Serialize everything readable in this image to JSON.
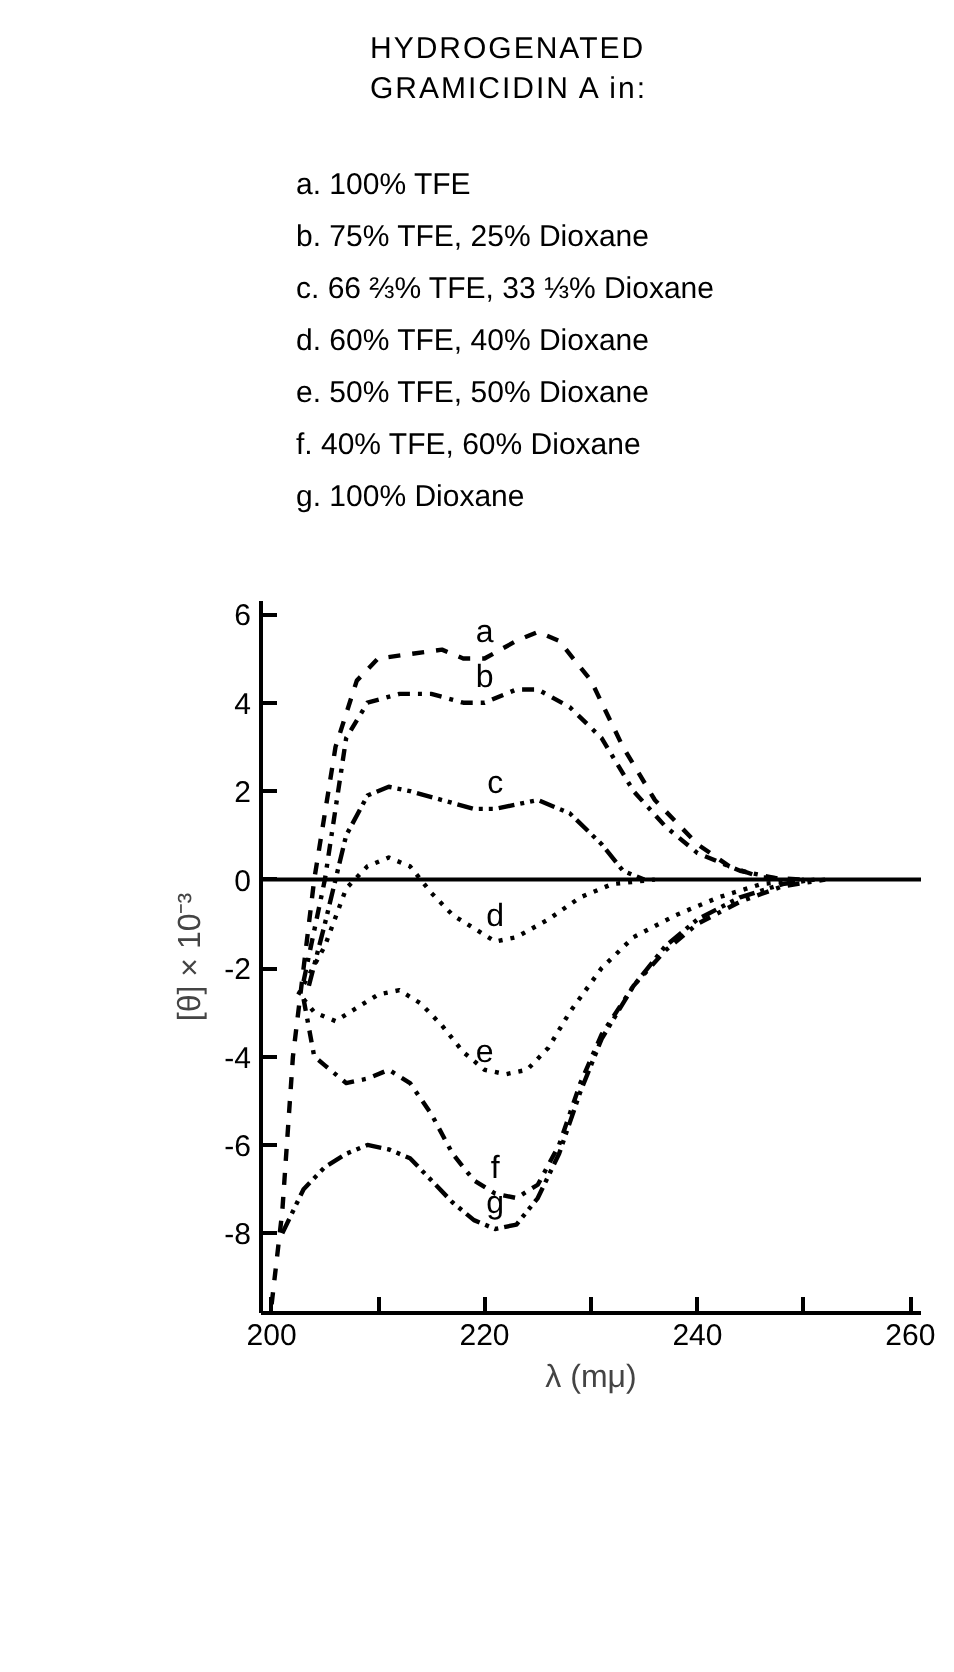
{
  "chart_data": {
    "type": "line",
    "title": "HYDROGENATED\nGRAMICIDIN A in:",
    "annotations": [
      "a. 100% TFE",
      "b. 75% TFE, 25% Dioxane",
      "c. 66 ⅔% TFE, 33 ⅓% Dioxane",
      "d. 60% TFE, 40% Dioxane",
      "e. 50% TFE, 50% Dioxane",
      "f. 40% TFE, 60% Dioxane",
      "g. 100% Dioxane"
    ],
    "ref_lines": [
      {
        "axis": "y",
        "value": 0,
        "color": "#000000",
        "line_style": "solid"
      }
    ],
    "xlabel": "λ (mμ)",
    "ylabel": "[θ] × 10⁻³",
    "xlim": [
      199,
      261
    ],
    "ylim": [
      -9.8,
      6.3
    ],
    "xticks": [
      200,
      {
        "value": 210,
        "label": null
      },
      220,
      {
        "value": 230,
        "label": null
      },
      240,
      {
        "value": 250,
        "label": null
      },
      260
    ],
    "yticks": [
      -8,
      -6,
      -4,
      -2,
      0,
      2,
      4,
      6
    ],
    "grid": false,
    "marker": "none",
    "series": [
      {
        "name": "a",
        "color": "#000000",
        "line_style": "dashed",
        "x": [
          200,
          201,
          202,
          204,
          206,
          208,
          210,
          213,
          216,
          218,
          220,
          223,
          225,
          227,
          230,
          233,
          236,
          240,
          243,
          246,
          250
        ],
        "values": [
          -9.6,
          -7.5,
          -4,
          0,
          3,
          4.5,
          5,
          5.1,
          5.2,
          5.0,
          5.0,
          5.4,
          5.6,
          5.4,
          4.5,
          3.0,
          1.8,
          0.8,
          0.3,
          0.05,
          0
        ]
      },
      {
        "name": "b",
        "color": "#000000",
        "line_style": "dashdot",
        "x": [
          203,
          205,
          207,
          209,
          212,
          215,
          218,
          220,
          223,
          225,
          228,
          231,
          234,
          237,
          240,
          244,
          248
        ],
        "values": [
          -2.3,
          0,
          3.2,
          4.0,
          4.2,
          4.2,
          4.0,
          4.0,
          4.3,
          4.3,
          3.9,
          3.2,
          2.0,
          1.2,
          0.6,
          0.2,
          0
        ]
      },
      {
        "name": "c",
        "color": "#000000",
        "line_style": "dashdotdot",
        "x": [
          203.5,
          205,
          207,
          209,
          211,
          213,
          216,
          219,
          221,
          223,
          225,
          228,
          231,
          233,
          235
        ],
        "values": [
          -2.4,
          -1,
          1.0,
          1.9,
          2.1,
          2.0,
          1.8,
          1.6,
          1.6,
          1.7,
          1.8,
          1.5,
          0.8,
          0.2,
          0
        ]
      },
      {
        "name": "d",
        "color": "#000000",
        "line_style": "dotted",
        "x": [
          202.5,
          205,
          207,
          209,
          211,
          213,
          215,
          217,
          219,
          221,
          223,
          226,
          229,
          232,
          236
        ],
        "values": [
          -2.6,
          -1.5,
          -0.2,
          0.3,
          0.5,
          0.3,
          -0.3,
          -0.8,
          -1.1,
          -1.4,
          -1.3,
          -0.9,
          -0.4,
          -0.1,
          0
        ]
      },
      {
        "name": "e",
        "color": "#000000",
        "line_style": "dotted",
        "x": [
          203,
          204,
          206,
          208,
          210,
          212,
          214,
          216,
          218,
          220,
          222,
          224,
          226,
          228,
          231,
          234,
          238,
          242,
          246,
          250
        ],
        "values": [
          -2.7,
          -3.0,
          -3.2,
          -2.9,
          -2.6,
          -2.5,
          -2.8,
          -3.3,
          -3.9,
          -4.3,
          -4.4,
          -4.3,
          -3.8,
          -3.0,
          -2.0,
          -1.3,
          -0.8,
          -0.4,
          -0.1,
          0
        ]
      },
      {
        "name": "f",
        "color": "#000000",
        "line_style": "dashdot",
        "x": [
          203,
          204,
          205,
          207,
          209,
          211,
          213,
          215,
          217,
          219,
          221,
          223,
          225,
          227,
          229,
          231,
          234,
          237,
          240,
          244,
          248,
          252
        ],
        "values": [
          -2.7,
          -4.0,
          -4.2,
          -4.6,
          -4.5,
          -4.3,
          -4.6,
          -5.3,
          -6.2,
          -6.8,
          -7.1,
          -7.2,
          -6.9,
          -6.0,
          -4.6,
          -3.5,
          -2.4,
          -1.6,
          -1.0,
          -0.5,
          -0.15,
          0
        ]
      },
      {
        "name": "g",
        "color": "#000000",
        "line_style": "dashdotdot",
        "x": [
          201,
          203,
          205,
          207,
          209,
          211,
          213,
          215,
          217,
          219,
          221,
          223,
          225,
          227,
          229,
          231,
          234,
          237,
          240,
          244,
          248,
          251
        ],
        "values": [
          -8.0,
          -7.0,
          -6.5,
          -6.2,
          -6.0,
          -6.1,
          -6.3,
          -6.8,
          -7.3,
          -7.7,
          -7.9,
          -7.8,
          -7.2,
          -6.2,
          -4.8,
          -3.6,
          -2.4,
          -1.5,
          -0.9,
          -0.4,
          -0.1,
          0
        ]
      }
    ]
  }
}
